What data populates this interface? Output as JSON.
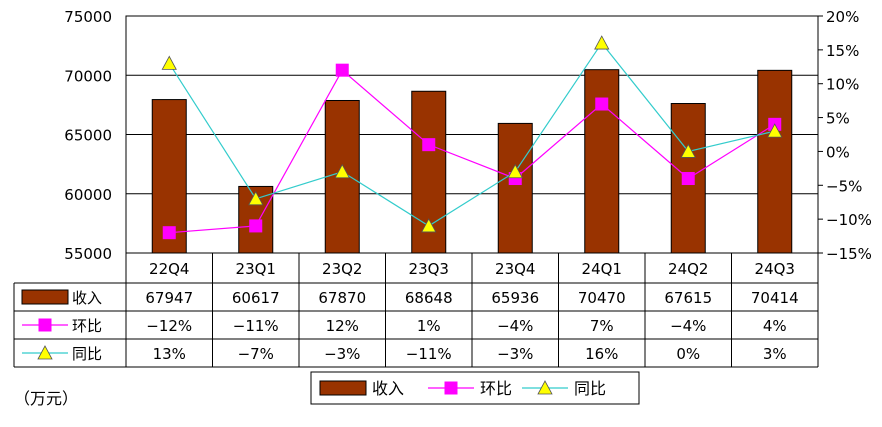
{
  "chart_data": {
    "type": "bar",
    "categories": [
      "22Q4",
      "23Q1",
      "23Q2",
      "23Q3",
      "23Q4",
      "24Q1",
      "24Q2",
      "24Q3"
    ],
    "unit_label": "（万元）",
    "y_left": {
      "min": 55000,
      "max": 75000,
      "step": 5000,
      "ticks": [
        "55000",
        "60000",
        "65000",
        "70000",
        "75000"
      ]
    },
    "y_right": {
      "min": -15,
      "max": 20,
      "step": 5,
      "ticks": [
        "-15%",
        "-10%",
        "-5%",
        "0%",
        "5%",
        "10%",
        "15%",
        "20%"
      ]
    },
    "grid": true,
    "legend_position": "bottom",
    "series": [
      {
        "name": "收入",
        "kind": "bar",
        "axis": "left",
        "color": "#993300",
        "values": [
          67947,
          60617,
          67870,
          68648,
          65936,
          70470,
          67615,
          70414
        ],
        "labels": [
          "67947",
          "60617",
          "67870",
          "68648",
          "65936",
          "70470",
          "67615",
          "70414"
        ]
      },
      {
        "name": "环比",
        "kind": "line",
        "axis": "right",
        "color": "#ff00ff",
        "marker": "square",
        "values": [
          -12,
          -11,
          12,
          1,
          -4,
          7,
          -4,
          4
        ],
        "labels": [
          "-12%",
          "-11%",
          "12%",
          "1%",
          "-4%",
          "7%",
          "-4%",
          "4%"
        ]
      },
      {
        "name": "同比",
        "kind": "line",
        "axis": "right",
        "color": "#33cccc",
        "marker": "triangle",
        "marker_fill": "#ffff00",
        "values": [
          13,
          -7,
          -3,
          -11,
          -3,
          16,
          0,
          3
        ],
        "labels": [
          "13%",
          "-7%",
          "-3%",
          "-11%",
          "-3%",
          "16%",
          "0%",
          "3%"
        ]
      }
    ]
  }
}
